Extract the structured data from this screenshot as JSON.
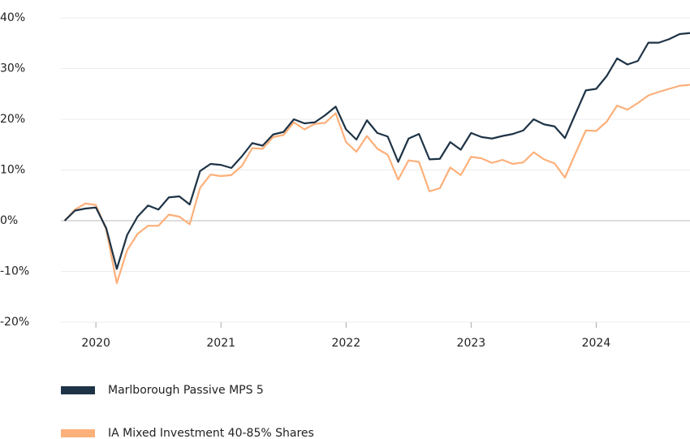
{
  "chart_data": {
    "type": "line",
    "x": [
      2019.75,
      2019.833,
      2019.917,
      2020,
      2020.083,
      2020.167,
      2020.25,
      2020.333,
      2020.417,
      2020.5,
      2020.583,
      2020.667,
      2020.75,
      2020.833,
      2020.917,
      2021,
      2021.083,
      2021.167,
      2021.25,
      2021.333,
      2021.417,
      2021.5,
      2021.583,
      2021.667,
      2021.75,
      2021.833,
      2021.917,
      2022,
      2022.083,
      2022.167,
      2022.25,
      2022.333,
      2022.417,
      2022.5,
      2022.583,
      2022.667,
      2022.75,
      2022.833,
      2022.917,
      2023,
      2023.083,
      2023.167,
      2023.25,
      2023.333,
      2023.417,
      2023.5,
      2023.583,
      2023.667,
      2023.75,
      2023.833,
      2023.917,
      2024,
      2024.083,
      2024.167,
      2024.25,
      2024.333,
      2024.417,
      2024.5,
      2024.583,
      2024.667,
      2024.75
    ],
    "series": [
      {
        "name": "Marlborough Passive MPS 5",
        "color": "#1e3346",
        "values": [
          0,
          2,
          2.4,
          2.6,
          -1.5,
          -9.5,
          -2.8,
          0.8,
          3,
          2.2,
          4.6,
          4.8,
          3.2,
          9.8,
          11.2,
          11,
          10.4,
          12.7,
          15.3,
          14.8,
          17,
          17.5,
          20,
          19.2,
          19.4,
          20.8,
          22.5,
          18,
          16,
          19.8,
          17.3,
          16.6,
          11.6,
          16.2,
          17.1,
          12.1,
          12.2,
          15.5,
          14,
          17.3,
          16.5,
          16.2,
          16.7,
          17.1,
          17.8,
          20,
          19,
          18.6,
          16.3,
          21,
          25.7,
          26,
          28.5,
          32,
          30.8,
          31.5,
          35.1,
          35.1,
          35.8,
          36.8,
          37
        ]
      },
      {
        "name": "IA Mixed Investment 40-85% Shares",
        "color": "#fdb07a",
        "values": [
          0,
          2.2,
          3.4,
          3.1,
          -1.8,
          -12.3,
          -5.8,
          -2.6,
          -1,
          -1,
          1.2,
          0.8,
          -0.7,
          6.5,
          9.1,
          8.8,
          9,
          10.8,
          14.3,
          14.2,
          16.5,
          16.9,
          19.4,
          18,
          19.1,
          19.3,
          21.2,
          15.5,
          13.6,
          16.7,
          14.2,
          13,
          8.1,
          11.9,
          11.6,
          5.8,
          6.4,
          10.5,
          9,
          12.6,
          12.3,
          11.4,
          12,
          11.2,
          11.5,
          13.5,
          12.1,
          11.3,
          8.5,
          13.2,
          17.8,
          17.7,
          19.5,
          22.7,
          21.9,
          23.2,
          24.7,
          25.4,
          26,
          26.6,
          26.8
        ]
      }
    ],
    "xlim": [
      2019.72,
      2024.75
    ],
    "xticks": [
      2020,
      2021,
      2022,
      2023,
      2024
    ],
    "ylim": [
      -20,
      40
    ],
    "yticks": [
      {
        "value": -20,
        "label": "-20%"
      },
      {
        "value": -10,
        "label": "-10%"
      },
      {
        "value": 0,
        "label": "0%"
      },
      {
        "value": 10,
        "label": "10%"
      },
      {
        "value": 20,
        "label": "20%"
      },
      {
        "value": 30,
        "label": "30%"
      },
      {
        "value": 40,
        "label": "40%"
      }
    ],
    "grid": true,
    "legend": "bottom"
  }
}
